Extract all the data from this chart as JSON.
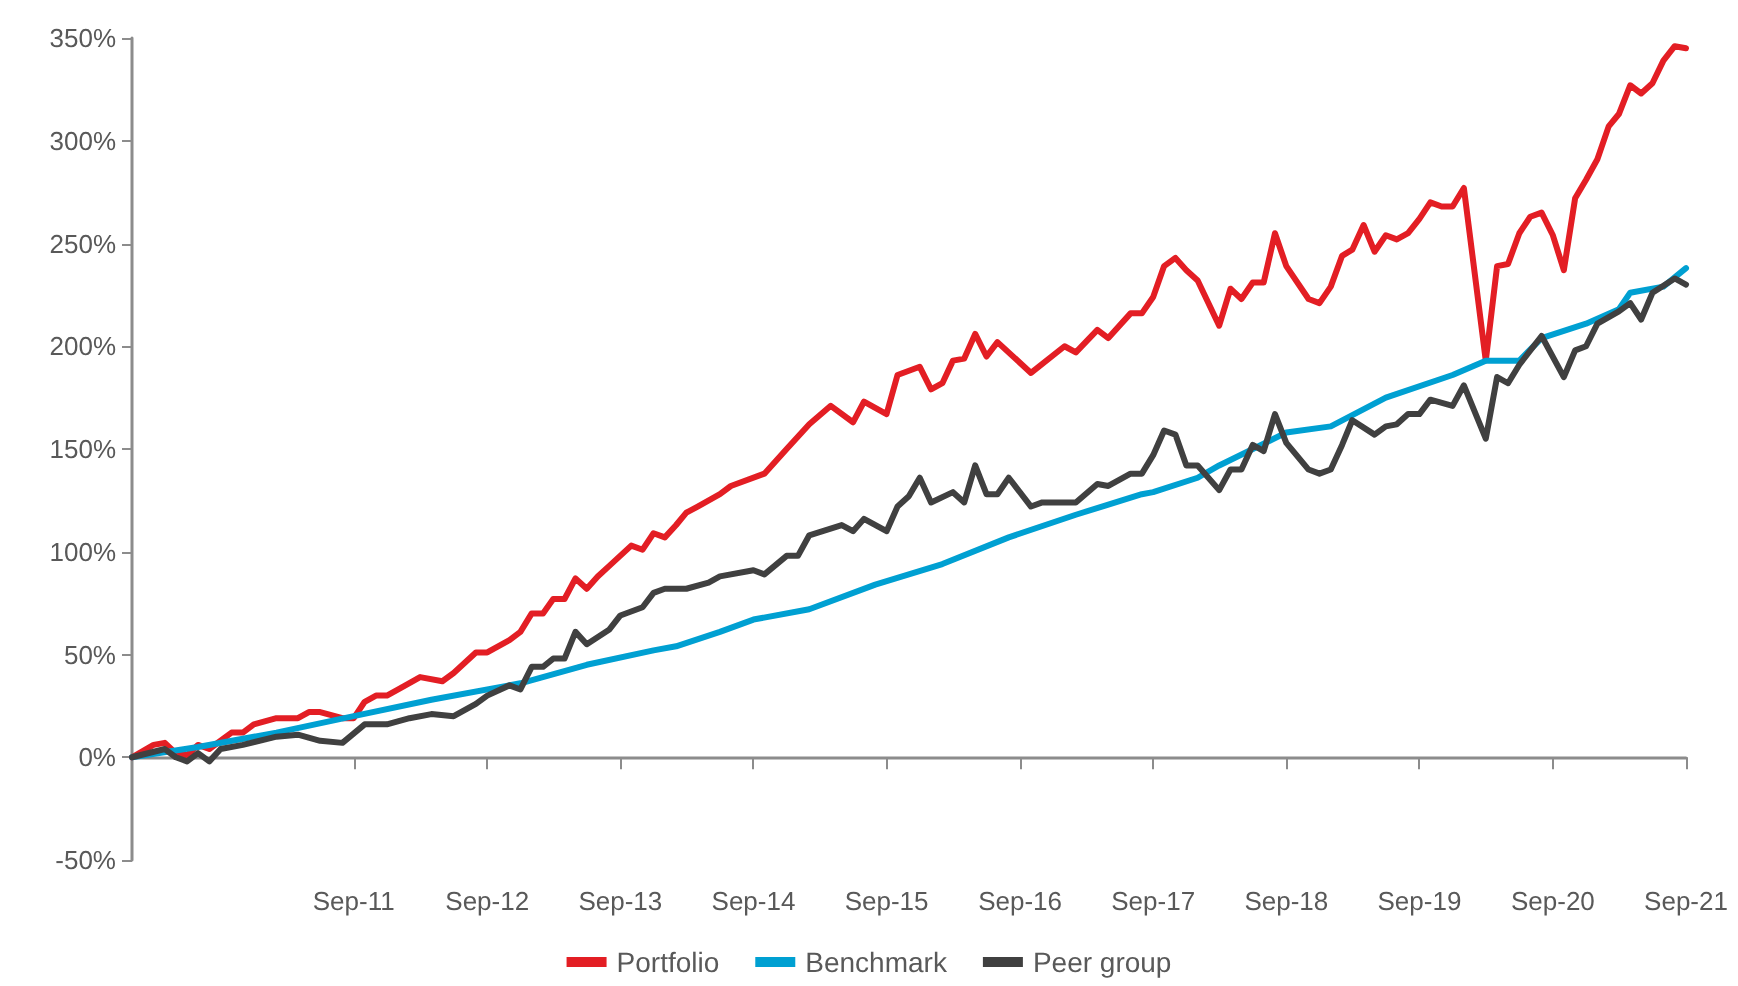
{
  "chart_data": {
    "type": "line",
    "marker": "none",
    "line_style": "solid",
    "legend": "bottom",
    "xlim": [
      "2010-01",
      "2021-09"
    ],
    "xticks": [
      {
        "value": "2011-09",
        "label": "Sep-11"
      },
      {
        "value": "2012-09",
        "label": "Sep-12"
      },
      {
        "value": "2013-09",
        "label": "Sep-13"
      },
      {
        "value": "2014-09",
        "label": "Sep-14"
      },
      {
        "value": "2015-09",
        "label": "Sep-15"
      },
      {
        "value": "2016-09",
        "label": "Sep-16"
      },
      {
        "value": "2017-09",
        "label": "Sep-17"
      },
      {
        "value": "2018-09",
        "label": "Sep-18"
      },
      {
        "value": "2019-09",
        "label": "Sep-19"
      },
      {
        "value": "2020-09",
        "label": "Sep-20"
      },
      {
        "value": "2021-09",
        "label": "Sep-21"
      }
    ],
    "ylim": [
      -50,
      350
    ],
    "yticks": [
      {
        "value": -50,
        "label": "-50%"
      },
      {
        "value": 0,
        "label": "0%"
      },
      {
        "value": 50,
        "label": "50%"
      },
      {
        "value": 100,
        "label": "100%"
      },
      {
        "value": 150,
        "label": "150%"
      },
      {
        "value": 200,
        "label": "200%"
      },
      {
        "value": 250,
        "label": "250%"
      },
      {
        "value": 300,
        "label": "300%"
      },
      {
        "value": 350,
        "label": "350%"
      }
    ],
    "series": [
      {
        "name": "Portfolio",
        "color": "#e31e24",
        "x": [
          "2010-01",
          "2010-03",
          "2010-04",
          "2010-05",
          "2010-06",
          "2010-07",
          "2010-08",
          "2010-10",
          "2010-11",
          "2010-12",
          "2011-02",
          "2011-04",
          "2011-05",
          "2011-06",
          "2011-08",
          "2011-09",
          "2011-10",
          "2011-11",
          "2011-12",
          "2012-01",
          "2012-03",
          "2012-05",
          "2012-06",
          "2012-08",
          "2012-09",
          "2012-11",
          "2012-12",
          "2013-01",
          "2013-02",
          "2013-03",
          "2013-04",
          "2013-05",
          "2013-06",
          "2013-07",
          "2013-08",
          "2013-10",
          "2013-11",
          "2013-12",
          "2014-01",
          "2014-02",
          "2014-03",
          "2014-04",
          "2014-06",
          "2014-07",
          "2014-10",
          "2014-12",
          "2015-02",
          "2015-04",
          "2015-06",
          "2015-07",
          "2015-09",
          "2015-10",
          "2015-12",
          "2016-01",
          "2016-02",
          "2016-03",
          "2016-04",
          "2016-05",
          "2016-06",
          "2016-07",
          "2016-10",
          "2017-01",
          "2017-02",
          "2017-04",
          "2017-05",
          "2017-07",
          "2017-08",
          "2017-09",
          "2017-10",
          "2017-11",
          "2017-12",
          "2018-01",
          "2018-03",
          "2018-04",
          "2018-05",
          "2018-06",
          "2018-07",
          "2018-08",
          "2018-09",
          "2018-11",
          "2018-12",
          "2019-01",
          "2019-02",
          "2019-03",
          "2019-04",
          "2019-05",
          "2019-06",
          "2019-07",
          "2019-08",
          "2019-09",
          "2019-10",
          "2019-11",
          "2019-12",
          "2020-01",
          "2020-03",
          "2020-04",
          "2020-05",
          "2020-06",
          "2020-07",
          "2020-08",
          "2020-09",
          "2020-10",
          "2020-11",
          "2020-12",
          "2021-01",
          "2021-02",
          "2021-03",
          "2021-04",
          "2021-05",
          "2021-06",
          "2021-07",
          "2021-08",
          "2021-09"
        ],
        "values": [
          0,
          6,
          7,
          2,
          1,
          6,
          4,
          12,
          12,
          16,
          19,
          19,
          22,
          22,
          19,
          19,
          27,
          30,
          30,
          33,
          39,
          37,
          41,
          51,
          51,
          57,
          61,
          70,
          70,
          77,
          77,
          87,
          82,
          88,
          93,
          103,
          101,
          109,
          107,
          113,
          119,
          122,
          128,
          132,
          138,
          150,
          162,
          171,
          163,
          173,
          167,
          186,
          190,
          179,
          182,
          193,
          194,
          206,
          195,
          202,
          187,
          200,
          197,
          208,
          204,
          216,
          216,
          224,
          239,
          243,
          237,
          232,
          210,
          228,
          223,
          231,
          231,
          255,
          239,
          223,
          221,
          229,
          244,
          247,
          259,
          246,
          254,
          252,
          255,
          262,
          270,
          268,
          268,
          277,
          193,
          239,
          240,
          255,
          263,
          265,
          254,
          237,
          272,
          281,
          291,
          307,
          313,
          327,
          323,
          328,
          339,
          346,
          345
        ]
      },
      {
        "name": "Benchmark",
        "color": "#00a0d2",
        "x": [
          "2010-01",
          "2010-07",
          "2011-02",
          "2011-09",
          "2012-04",
          "2012-12",
          "2013-06",
          "2013-12",
          "2014-02",
          "2014-06",
          "2014-09",
          "2015-02",
          "2015-08",
          "2016-02",
          "2016-08",
          "2017-02",
          "2017-08",
          "2017-09",
          "2018-01",
          "2018-03",
          "2018-09",
          "2019-01",
          "2019-06",
          "2019-12",
          "2020-03",
          "2020-06",
          "2020-08",
          "2020-12",
          "2021-03",
          "2021-04",
          "2021-07",
          "2021-09"
        ],
        "values": [
          0,
          5,
          12,
          20,
          28,
          36,
          45,
          52,
          54,
          61,
          67,
          72,
          84,
          94,
          107,
          118,
          128,
          129,
          136,
          142,
          158,
          161,
          175,
          186,
          193,
          193,
          204,
          211,
          218,
          226,
          229,
          238
        ]
      },
      {
        "name": "Peer group",
        "color": "#404040",
        "x": [
          "2010-01",
          "2010-04",
          "2010-05",
          "2010-06",
          "2010-07",
          "2010-08",
          "2010-09",
          "2010-11",
          "2011-02",
          "2011-04",
          "2011-06",
          "2011-08",
          "2011-10",
          "2011-12",
          "2012-02",
          "2012-04",
          "2012-06",
          "2012-08",
          "2012-09",
          "2012-11",
          "2012-12",
          "2013-01",
          "2013-02",
          "2013-03",
          "2013-04",
          "2013-05",
          "2013-06",
          "2013-08",
          "2013-09",
          "2013-11",
          "2013-12",
          "2014-01",
          "2014-03",
          "2014-05",
          "2014-06",
          "2014-09",
          "2014-10",
          "2014-12",
          "2015-01",
          "2015-02",
          "2015-05",
          "2015-06",
          "2015-07",
          "2015-09",
          "2015-10",
          "2015-11",
          "2015-12",
          "2016-01",
          "2016-03",
          "2016-04",
          "2016-05",
          "2016-06",
          "2016-07",
          "2016-08",
          "2016-10",
          "2016-11",
          "2017-01",
          "2017-02",
          "2017-04",
          "2017-05",
          "2017-07",
          "2017-08",
          "2017-09",
          "2017-10",
          "2017-11",
          "2017-12",
          "2018-01",
          "2018-03",
          "2018-04",
          "2018-05",
          "2018-06",
          "2018-07",
          "2018-08",
          "2018-09",
          "2018-11",
          "2018-12",
          "2019-01",
          "2019-02",
          "2019-03",
          "2019-05",
          "2019-06",
          "2019-07",
          "2019-08",
          "2019-09",
          "2019-10",
          "2019-12",
          "2020-01",
          "2020-03",
          "2020-04",
          "2020-05",
          "2020-06",
          "2020-08",
          "2020-10",
          "2020-11",
          "2020-12",
          "2021-01",
          "2021-03",
          "2021-04",
          "2021-05",
          "2021-06",
          "2021-08",
          "2021-09"
        ],
        "values": [
          0,
          4,
          0,
          -2,
          2,
          -2,
          4,
          6,
          10,
          11,
          8,
          7,
          16,
          16,
          19,
          21,
          20,
          26,
          30,
          35,
          33,
          44,
          44,
          48,
          48,
          61,
          55,
          62,
          69,
          73,
          80,
          82,
          82,
          85,
          88,
          91,
          89,
          98,
          98,
          108,
          113,
          110,
          116,
          110,
          122,
          127,
          136,
          124,
          129,
          124,
          142,
          128,
          128,
          136,
          122,
          124,
          124,
          124,
          133,
          132,
          138,
          138,
          147,
          159,
          157,
          142,
          142,
          130,
          140,
          140,
          152,
          149,
          167,
          153,
          140,
          138,
          140,
          152,
          164,
          157,
          161,
          162,
          167,
          167,
          174,
          171,
          181,
          155,
          185,
          182,
          191,
          205,
          185,
          198,
          200,
          211,
          217,
          221,
          213,
          226,
          233,
          230
        ]
      }
    ]
  }
}
